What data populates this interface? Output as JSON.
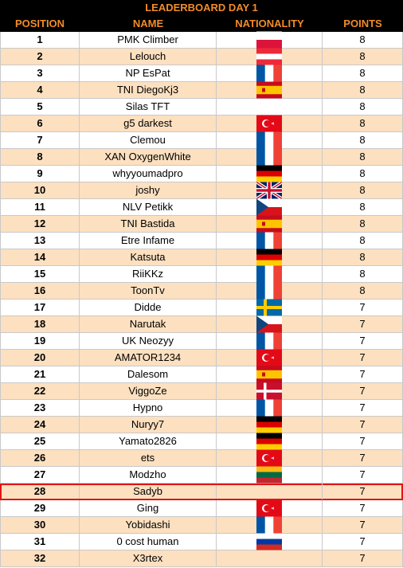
{
  "title": "LEADERBOARD DAY 1",
  "headers": {
    "position": "POSITION",
    "name": "NAME",
    "nationality": "NATIONALITY",
    "points": "POINTS"
  },
  "colors": {
    "header_bg": "#000000",
    "header_text": "#f28c28",
    "row_alt": "#fce0c0",
    "highlight": "#e01515"
  },
  "highlighted_position": "28",
  "rows": [
    {
      "position": "1",
      "name": "PMK Climber",
      "flag": "poland",
      "points": "8"
    },
    {
      "position": "2",
      "name": "Lelouch",
      "flag": "austria",
      "points": "8"
    },
    {
      "position": "3",
      "name": "NP EsPat",
      "flag": "france",
      "points": "8"
    },
    {
      "position": "4",
      "name": "TNI DiegoKj3",
      "flag": "spain",
      "points": "8"
    },
    {
      "position": "5",
      "name": "Silas TFT",
      "flag": "none",
      "points": "8"
    },
    {
      "position": "6",
      "name": "g5 darkest",
      "flag": "turkey",
      "points": "8"
    },
    {
      "position": "7",
      "name": "Clemou",
      "flag": "france",
      "points": "8"
    },
    {
      "position": "8",
      "name": "XAN OxygenWhite",
      "flag": "france",
      "points": "8"
    },
    {
      "position": "9",
      "name": "whyyoumadpro",
      "flag": "germany",
      "points": "8"
    },
    {
      "position": "10",
      "name": "joshy",
      "flag": "uk",
      "points": "8"
    },
    {
      "position": "11",
      "name": "NLV Petikk",
      "flag": "czechia",
      "points": "8"
    },
    {
      "position": "12",
      "name": "TNI Bastida",
      "flag": "spain",
      "points": "8"
    },
    {
      "position": "13",
      "name": "Etre Infame",
      "flag": "france",
      "points": "8"
    },
    {
      "position": "14",
      "name": "Katsuta",
      "flag": "germany",
      "points": "8"
    },
    {
      "position": "15",
      "name": "RiiKKz",
      "flag": "france",
      "points": "8"
    },
    {
      "position": "16",
      "name": "ToonTv",
      "flag": "france",
      "points": "8"
    },
    {
      "position": "17",
      "name": "Didde",
      "flag": "sweden",
      "points": "7"
    },
    {
      "position": "18",
      "name": "Narutak",
      "flag": "czechia",
      "points": "7"
    },
    {
      "position": "19",
      "name": "UK Neozyy",
      "flag": "france",
      "points": "7"
    },
    {
      "position": "20",
      "name": "AMATOR1234",
      "flag": "turkey",
      "points": "7"
    },
    {
      "position": "21",
      "name": "Dalesom",
      "flag": "spain",
      "points": "7"
    },
    {
      "position": "22",
      "name": "ViggoZe",
      "flag": "denmark",
      "points": "7"
    },
    {
      "position": "23",
      "name": "Hypno",
      "flag": "france",
      "points": "7"
    },
    {
      "position": "24",
      "name": "Nuryy7",
      "flag": "germany",
      "points": "7"
    },
    {
      "position": "25",
      "name": "Yamato2826",
      "flag": "germany",
      "points": "7"
    },
    {
      "position": "26",
      "name": "ets",
      "flag": "turkey",
      "points": "7"
    },
    {
      "position": "27",
      "name": "Modzho",
      "flag": "lithuania",
      "points": "7"
    },
    {
      "position": "28",
      "name": "Sadyb",
      "flag": "none",
      "points": "7"
    },
    {
      "position": "29",
      "name": "Ging",
      "flag": "turkey",
      "points": "7"
    },
    {
      "position": "30",
      "name": "Yobidashi",
      "flag": "france",
      "points": "7"
    },
    {
      "position": "31",
      "name": "0 cost human",
      "flag": "russia",
      "points": "7"
    },
    {
      "position": "32",
      "name": "X3rtex",
      "flag": "none",
      "points": "7"
    }
  ]
}
